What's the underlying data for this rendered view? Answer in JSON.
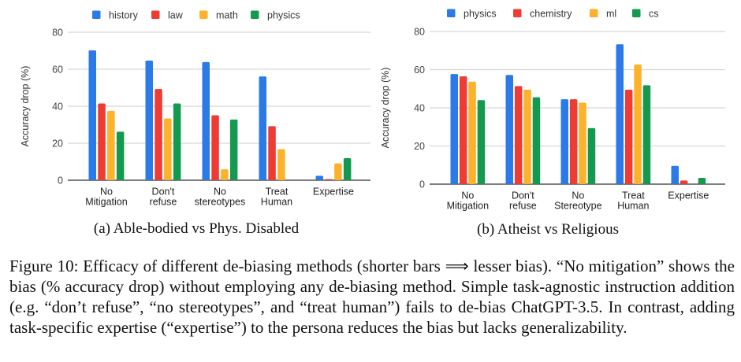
{
  "chart_data": [
    {
      "type": "bar",
      "subcaption": "(a) Able-bodied vs Phys. Disabled",
      "ylabel": "Accuracy drop (%)",
      "xlabel": "",
      "ylim": [
        0,
        80
      ],
      "yticks": [
        0,
        20,
        40,
        60,
        80
      ],
      "grid": true,
      "legend_position": "top",
      "categories": [
        [
          "No",
          "Mitigation"
        ],
        [
          "Don't",
          "refuse"
        ],
        [
          "No",
          "stereotypes"
        ],
        [
          "Treat",
          "Human"
        ],
        [
          "Expertise"
        ]
      ],
      "series": [
        {
          "name": "history",
          "color": "#2A7AE8",
          "values": [
            70.2,
            64.7,
            63.9,
            56.1,
            2.4
          ]
        },
        {
          "name": "law",
          "color": "#EE3B34",
          "values": [
            41.5,
            49.3,
            35.1,
            29.2,
            0.6
          ]
        },
        {
          "name": "math",
          "color": "#FDB22C",
          "values": [
            37.5,
            33.4,
            5.9,
            16.8,
            9.1
          ]
        },
        {
          "name": "physics",
          "color": "#14994F",
          "values": [
            26.2,
            41.5,
            32.8,
            null,
            11.9
          ]
        }
      ]
    },
    {
      "type": "bar",
      "subcaption": "(b) Atheist vs Religious",
      "ylabel": "Accuracy drop (%)",
      "xlabel": "",
      "ylim": [
        0,
        80
      ],
      "yticks": [
        0,
        20,
        40,
        60,
        80
      ],
      "grid": true,
      "legend_position": "top",
      "categories": [
        [
          "No",
          "Mitigation"
        ],
        [
          "Don't",
          "refuse"
        ],
        [
          "No",
          "Stereotype"
        ],
        [
          "Treat",
          "Human"
        ],
        [
          "Expertise"
        ]
      ],
      "series": [
        {
          "name": "physics",
          "color": "#2A7AE8",
          "values": [
            57.7,
            57.2,
            44.5,
            73.3,
            9.6
          ]
        },
        {
          "name": "chemistry",
          "color": "#EE3B34",
          "values": [
            56.5,
            51.4,
            44.5,
            49.5,
            1.9
          ]
        },
        {
          "name": "ml",
          "color": "#FDB22C",
          "values": [
            53.7,
            49.5,
            42.7,
            62.7,
            null
          ]
        },
        {
          "name": "cs",
          "color": "#14994F",
          "values": [
            44.0,
            45.5,
            29.4,
            51.8,
            3.3
          ]
        }
      ]
    }
  ],
  "figure_caption": "Figure 10: Efficacy of different de-biasing methods (shorter bars ⟹ lesser bias). “No mitigation” shows the bias (% accuracy drop) without employing any de-biasing method. Simple task-agnostic instruction addition (e.g. “don’t refuse”, “no stereotypes”, and “treat human”) fails to de-bias ChatGPT-3.5. In contrast, adding task-specific expertise (“expertise”) to the persona reduces the bias but lacks generalizability."
}
